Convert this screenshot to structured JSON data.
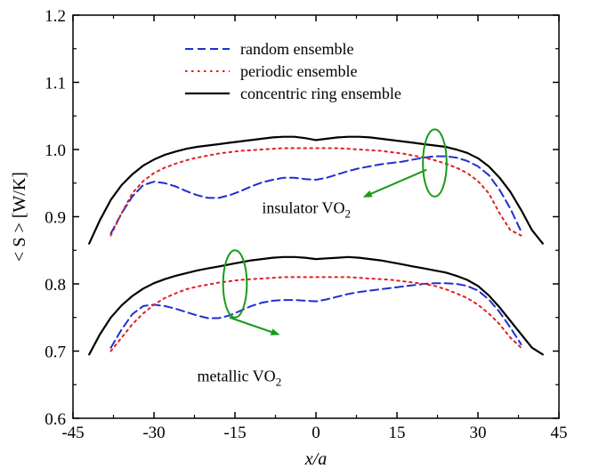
{
  "chart_data": {
    "type": "line",
    "xlabel": "x/a",
    "ylabel": "< S > [W/K]",
    "xlim": [
      -45,
      45
    ],
    "ylim": [
      0.6,
      1.2
    ],
    "xticks": [
      -45,
      -30,
      -15,
      0,
      15,
      30,
      45
    ],
    "xtick_labels": [
      "-45",
      "-30",
      "-15",
      "0",
      "15",
      "30",
      "45"
    ],
    "yticks": [
      0.6,
      0.7,
      0.8,
      0.9,
      1.0,
      1.1,
      1.2
    ],
    "ytick_labels": [
      "0.6",
      "0.7",
      "0.8",
      "0.9",
      "1.0",
      "1.1",
      "1.2"
    ],
    "grid": false,
    "legend_position": "top-center",
    "legend": [
      {
        "label": "random ensemble",
        "style": "dashed",
        "color": "#1f2fd0"
      },
      {
        "label": "periodic ensemble",
        "style": "dotted",
        "color": "#e02020"
      },
      {
        "label": "concentric ring ensemble",
        "style": "solid",
        "color": "#000000"
      }
    ],
    "annotations": [
      {
        "text": "insulator VO",
        "subscript": "2",
        "x": -10,
        "y": 0.905,
        "ellipse": {
          "cx": 22,
          "cy": 0.98,
          "rx": 2.2,
          "ry": 0.05
        },
        "arrow_from": [
          20.5,
          0.97
        ],
        "arrow_to": [
          9,
          0.93
        ]
      },
      {
        "text": "metallic VO",
        "subscript": "2",
        "x": -22,
        "y": 0.655,
        "ellipse": {
          "cx": -15,
          "cy": 0.8,
          "rx": 2.2,
          "ry": 0.05
        },
        "arrow_from": [
          -16,
          0.75
        ],
        "arrow_to": [
          -7,
          0.725
        ]
      }
    ],
    "series": [
      {
        "group": "insulator",
        "name": "random ensemble",
        "style": "dashed",
        "color": "#1f2fd0",
        "x": [
          -38,
          -36,
          -34,
          -32,
          -30,
          -28,
          -26,
          -24,
          -22,
          -20,
          -18,
          -16,
          -14,
          -12,
          -10,
          -8,
          -6,
          -4,
          -2,
          0,
          2,
          4,
          6,
          8,
          10,
          12,
          14,
          16,
          18,
          20,
          22,
          24,
          26,
          28,
          30,
          32,
          34,
          36,
          38
        ],
        "y": [
          0.875,
          0.905,
          0.93,
          0.947,
          0.952,
          0.95,
          0.945,
          0.938,
          0.932,
          0.928,
          0.928,
          0.932,
          0.938,
          0.945,
          0.951,
          0.955,
          0.958,
          0.958,
          0.956,
          0.955,
          0.958,
          0.963,
          0.968,
          0.972,
          0.975,
          0.978,
          0.98,
          0.982,
          0.985,
          0.988,
          0.99,
          0.99,
          0.988,
          0.983,
          0.975,
          0.962,
          0.94,
          0.912,
          0.878
        ]
      },
      {
        "group": "insulator",
        "name": "periodic ensemble",
        "style": "dotted",
        "color": "#e02020",
        "x": [
          -38,
          -36,
          -34,
          -32,
          -30,
          -28,
          -26,
          -24,
          -22,
          -20,
          -18,
          -16,
          -14,
          -12,
          -10,
          -8,
          -6,
          -4,
          -2,
          0,
          2,
          4,
          6,
          8,
          10,
          12,
          14,
          16,
          18,
          20,
          22,
          24,
          26,
          28,
          30,
          32,
          34,
          36,
          38
        ],
        "y": [
          0.872,
          0.905,
          0.935,
          0.953,
          0.965,
          0.973,
          0.979,
          0.984,
          0.988,
          0.991,
          0.994,
          0.996,
          0.998,
          0.999,
          1.0,
          1.001,
          1.002,
          1.002,
          1.002,
          1.002,
          1.002,
          1.002,
          1.001,
          1.0,
          0.999,
          0.998,
          0.996,
          0.994,
          0.991,
          0.988,
          0.984,
          0.979,
          0.973,
          0.965,
          0.953,
          0.935,
          0.905,
          0.88,
          0.872
        ]
      },
      {
        "group": "insulator",
        "name": "concentric ring ensemble",
        "style": "solid",
        "color": "#000000",
        "x": [
          -42,
          -40,
          -38,
          -36,
          -34,
          -32,
          -30,
          -28,
          -26,
          -24,
          -22,
          -20,
          -18,
          -16,
          -14,
          -12,
          -10,
          -8,
          -6,
          -4,
          -2,
          0,
          2,
          4,
          6,
          8,
          10,
          12,
          14,
          16,
          18,
          20,
          22,
          24,
          26,
          28,
          30,
          32,
          34,
          36,
          38,
          40,
          42
        ],
        "y": [
          0.86,
          0.895,
          0.925,
          0.947,
          0.963,
          0.976,
          0.985,
          0.992,
          0.997,
          1.001,
          1.004,
          1.006,
          1.008,
          1.01,
          1.012,
          1.014,
          1.016,
          1.018,
          1.019,
          1.019,
          1.017,
          1.014,
          1.016,
          1.018,
          1.019,
          1.019,
          1.018,
          1.016,
          1.014,
          1.012,
          1.01,
          1.008,
          1.006,
          1.004,
          1.0,
          0.995,
          0.987,
          0.975,
          0.958,
          0.937,
          0.91,
          0.88,
          0.86
        ]
      },
      {
        "group": "metallic",
        "name": "random ensemble",
        "style": "dashed",
        "color": "#1f2fd0",
        "x": [
          -38,
          -36,
          -34,
          -32,
          -30,
          -28,
          -26,
          -24,
          -22,
          -20,
          -18,
          -16,
          -14,
          -12,
          -10,
          -8,
          -6,
          -4,
          -2,
          0,
          2,
          4,
          6,
          8,
          10,
          12,
          14,
          16,
          18,
          20,
          22,
          24,
          26,
          28,
          30,
          32,
          34,
          36,
          38
        ],
        "y": [
          0.705,
          0.732,
          0.755,
          0.767,
          0.769,
          0.767,
          0.763,
          0.758,
          0.753,
          0.749,
          0.749,
          0.753,
          0.76,
          0.767,
          0.772,
          0.775,
          0.776,
          0.776,
          0.775,
          0.774,
          0.777,
          0.781,
          0.785,
          0.788,
          0.79,
          0.792,
          0.794,
          0.796,
          0.798,
          0.8,
          0.801,
          0.801,
          0.8,
          0.797,
          0.79,
          0.777,
          0.758,
          0.735,
          0.71
        ]
      },
      {
        "group": "metallic",
        "name": "periodic ensemble",
        "style": "dotted",
        "color": "#e02020",
        "x": [
          -38,
          -36,
          -34,
          -32,
          -30,
          -28,
          -26,
          -24,
          -22,
          -20,
          -18,
          -16,
          -14,
          -12,
          -10,
          -8,
          -6,
          -4,
          -2,
          0,
          2,
          4,
          6,
          8,
          10,
          12,
          14,
          16,
          18,
          20,
          22,
          24,
          26,
          28,
          30,
          32,
          34,
          36,
          38
        ],
        "y": [
          0.7,
          0.72,
          0.74,
          0.756,
          0.769,
          0.779,
          0.786,
          0.792,
          0.796,
          0.799,
          0.802,
          0.804,
          0.806,
          0.807,
          0.808,
          0.809,
          0.81,
          0.81,
          0.81,
          0.81,
          0.81,
          0.81,
          0.81,
          0.809,
          0.808,
          0.807,
          0.806,
          0.804,
          0.802,
          0.8,
          0.797,
          0.792,
          0.786,
          0.779,
          0.769,
          0.756,
          0.74,
          0.72,
          0.705
        ]
      },
      {
        "group": "metallic",
        "name": "concentric ring ensemble",
        "style": "solid",
        "color": "#000000",
        "x": [
          -42,
          -40,
          -38,
          -36,
          -34,
          -32,
          -30,
          -28,
          -26,
          -24,
          -22,
          -20,
          -18,
          -16,
          -14,
          -12,
          -10,
          -8,
          -6,
          -4,
          -2,
          0,
          2,
          4,
          6,
          8,
          10,
          12,
          14,
          16,
          18,
          20,
          22,
          24,
          26,
          28,
          30,
          32,
          34,
          36,
          38,
          40,
          42
        ],
        "y": [
          0.695,
          0.725,
          0.75,
          0.768,
          0.782,
          0.793,
          0.801,
          0.807,
          0.812,
          0.816,
          0.82,
          0.823,
          0.826,
          0.829,
          0.832,
          0.835,
          0.837,
          0.839,
          0.84,
          0.84,
          0.839,
          0.837,
          0.838,
          0.839,
          0.84,
          0.839,
          0.837,
          0.835,
          0.832,
          0.829,
          0.826,
          0.823,
          0.82,
          0.817,
          0.812,
          0.806,
          0.797,
          0.783,
          0.765,
          0.745,
          0.725,
          0.705,
          0.695
        ]
      }
    ]
  }
}
